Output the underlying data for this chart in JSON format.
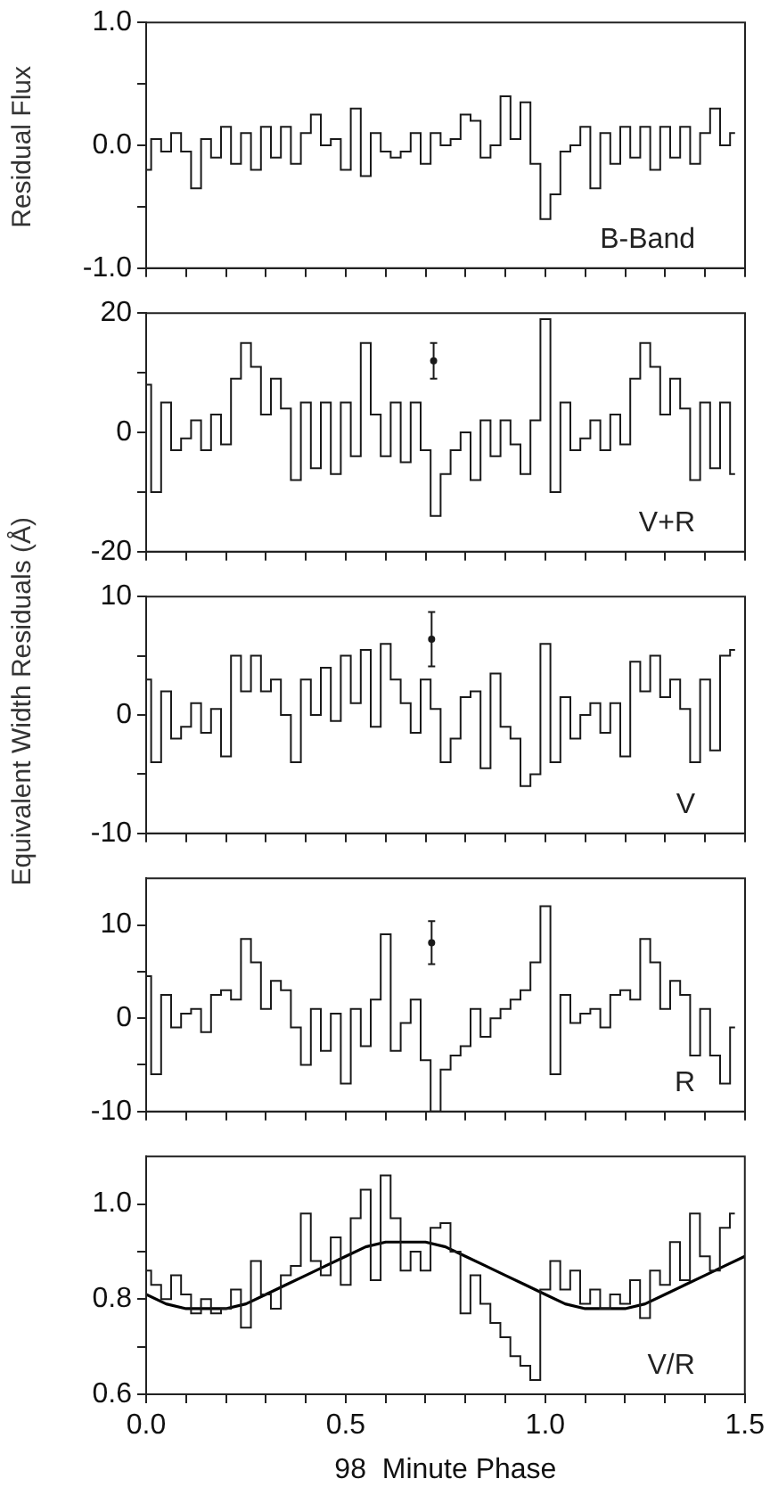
{
  "chart_data": [
    {
      "type": "step",
      "ylabel": "Residual Flux",
      "tick_labels": "y",
      "annotations": [
        "B-Band"
      ],
      "xlim": [
        0,
        1.5
      ],
      "xticks": [
        0,
        0.1,
        0.2,
        0.3,
        0.4,
        0.5,
        0.6,
        0.7,
        0.8,
        0.9,
        1,
        1.1,
        1.2,
        1.3,
        1.4,
        1.5
      ],
      "ylim": [
        -1,
        1
      ],
      "yticks": [
        {
          "value": -1,
          "label": "-1.0"
        },
        {
          "value": -0.5,
          "label": null
        },
        {
          "value": 0,
          "label": "0.0"
        },
        {
          "value": 0.5,
          "label": null
        },
        {
          "value": 1,
          "label": "1.0"
        }
      ],
      "x": [
        0,
        0.025,
        0.05,
        0.075,
        0.1,
        0.125,
        0.15,
        0.175,
        0.2,
        0.225,
        0.25,
        0.275,
        0.3,
        0.325,
        0.35,
        0.375,
        0.4,
        0.425,
        0.45,
        0.475,
        0.5,
        0.525,
        0.55,
        0.575,
        0.6,
        0.625,
        0.65,
        0.675,
        0.7,
        0.725,
        0.75,
        0.775,
        0.8,
        0.825,
        0.85,
        0.875,
        0.9,
        0.925,
        0.95,
        0.975,
        1,
        1.025,
        1.05,
        1.075,
        1.1,
        1.125,
        1.15,
        1.175,
        1.2,
        1.225,
        1.25,
        1.275,
        1.3,
        1.325,
        1.35,
        1.375,
        1.4,
        1.425,
        1.45,
        1.475
      ],
      "series": [
        {
          "color": "#1a1a1a",
          "values": [
            -0.2,
            0.05,
            -0.05,
            0.1,
            -0.05,
            -0.35,
            0.05,
            -0.1,
            0.15,
            -0.15,
            0.1,
            -0.2,
            0.15,
            -0.1,
            0.15,
            -0.15,
            0.1,
            0.25,
            0,
            0.05,
            -0.2,
            0.3,
            -0.25,
            0.1,
            -0.05,
            -0.1,
            -0.05,
            0.1,
            -0.15,
            0.1,
            0,
            0.05,
            0.25,
            0.2,
            -0.1,
            0,
            0.4,
            0.05,
            0.35,
            -0.15,
            -0.6,
            -0.4,
            -0.05,
            0,
            0.15,
            -0.35,
            0.1,
            -0.15,
            0.15,
            -0.1,
            0.15,
            -0.2,
            0.15,
            -0.1,
            0.15,
            -0.15,
            0.1,
            0.3,
            0,
            0.1
          ]
        }
      ]
    },
    {
      "type": "step",
      "tick_labels": "y",
      "annotations": [
        "V+R"
      ],
      "xlim": [
        0,
        1.5
      ],
      "xticks": [
        0,
        0.1,
        0.2,
        0.3,
        0.4,
        0.5,
        0.6,
        0.7,
        0.8,
        0.9,
        1,
        1.1,
        1.2,
        1.3,
        1.4,
        1.5
      ],
      "ylim": [
        -20,
        20
      ],
      "yticks": [
        -20,
        {
          "value": -10,
          "label": null
        },
        0,
        {
          "value": 10,
          "label": null
        },
        20
      ],
      "x": [
        0,
        0.025,
        0.05,
        0.075,
        0.1,
        0.125,
        0.15,
        0.175,
        0.2,
        0.225,
        0.25,
        0.275,
        0.3,
        0.325,
        0.35,
        0.375,
        0.4,
        0.425,
        0.45,
        0.475,
        0.5,
        0.525,
        0.55,
        0.575,
        0.6,
        0.625,
        0.65,
        0.675,
        0.7,
        0.725,
        0.75,
        0.775,
        0.8,
        0.825,
        0.85,
        0.875,
        0.9,
        0.925,
        0.95,
        0.975,
        1,
        1.025,
        1.05,
        1.075,
        1.1,
        1.125,
        1.15,
        1.175,
        1.2,
        1.225,
        1.25,
        1.275,
        1.3,
        1.325,
        1.35,
        1.375,
        1.4,
        1.425,
        1.45,
        1.475
      ],
      "series": [
        {
          "color": "#1a1a1a",
          "values": [
            8,
            -10,
            5,
            -3,
            -1,
            2,
            -3,
            3,
            -2,
            9,
            15,
            11,
            3,
            9,
            4,
            -8,
            5,
            -6,
            5,
            -7,
            5,
            -4,
            15,
            3,
            -4,
            5,
            -5,
            5,
            -3,
            -14,
            -7,
            -3,
            0,
            -8,
            2,
            -4,
            2,
            -2,
            -7,
            2,
            19,
            -10,
            5,
            -3,
            -1,
            2,
            -3,
            3,
            -2,
            9,
            15,
            11,
            3,
            9,
            4,
            -8,
            5,
            -6,
            5,
            -7
          ]
        },
        {
          "type": "scatter",
          "color": "#1a1a1a",
          "x": [
            0.72
          ],
          "values": [
            12
          ],
          "errors": [
            3
          ]
        }
      ]
    },
    {
      "type": "step",
      "ylabel": "Equivalent Width Residuals (Å)",
      "tick_labels": "y",
      "annotations": [
        "V"
      ],
      "xlim": [
        0,
        1.5
      ],
      "xticks": [
        0,
        0.1,
        0.2,
        0.3,
        0.4,
        0.5,
        0.6,
        0.7,
        0.8,
        0.9,
        1,
        1.1,
        1.2,
        1.3,
        1.4,
        1.5
      ],
      "ylim": [
        -10,
        10
      ],
      "yticks": [
        -10,
        {
          "value": -5,
          "label": null
        },
        0,
        {
          "value": 5,
          "label": null
        },
        10
      ],
      "x": [
        0,
        0.025,
        0.05,
        0.075,
        0.1,
        0.125,
        0.15,
        0.175,
        0.2,
        0.225,
        0.25,
        0.275,
        0.3,
        0.325,
        0.35,
        0.375,
        0.4,
        0.425,
        0.45,
        0.475,
        0.5,
        0.525,
        0.55,
        0.575,
        0.6,
        0.625,
        0.65,
        0.675,
        0.7,
        0.725,
        0.75,
        0.775,
        0.8,
        0.825,
        0.85,
        0.875,
        0.9,
        0.925,
        0.95,
        0.975,
        1,
        1.025,
        1.05,
        1.075,
        1.1,
        1.125,
        1.15,
        1.175,
        1.2,
        1.225,
        1.25,
        1.275,
        1.3,
        1.325,
        1.35,
        1.375,
        1.4,
        1.425,
        1.45,
        1.475
      ],
      "series": [
        {
          "color": "#1a1a1a",
          "values": [
            3,
            -4,
            2,
            -2,
            -1,
            1,
            -1.5,
            0.5,
            -3.5,
            5,
            2,
            5,
            2,
            3,
            0,
            -4,
            3,
            0,
            4,
            -0.5,
            5,
            1,
            5.5,
            -1,
            6,
            3,
            1,
            -1.5,
            3,
            0.5,
            -4,
            -2,
            1.5,
            2,
            -4.5,
            3.5,
            -1,
            -2,
            -6,
            -5,
            6,
            -4,
            1.5,
            -2,
            0,
            1,
            -1.5,
            1,
            -3.5,
            4.5,
            2,
            5,
            1.5,
            3,
            0.5,
            -4,
            3,
            -3,
            5,
            5.5
          ]
        },
        {
          "type": "scatter",
          "color": "#1a1a1a",
          "x": [
            0.715
          ],
          "values": [
            6.4
          ],
          "errors": [
            2.3
          ]
        }
      ]
    },
    {
      "type": "step",
      "tick_labels": "y",
      "annotations": [
        "R"
      ],
      "xlim": [
        0,
        1.5
      ],
      "xticks": [
        0,
        0.1,
        0.2,
        0.3,
        0.4,
        0.5,
        0.6,
        0.7,
        0.8,
        0.9,
        1,
        1.1,
        1.2,
        1.3,
        1.4,
        1.5
      ],
      "ylim": [
        -10,
        15
      ],
      "yticks": [
        -10,
        {
          "value": -5,
          "label": null
        },
        0,
        {
          "value": 5,
          "label": null
        },
        10
      ],
      "x": [
        0,
        0.025,
        0.05,
        0.075,
        0.1,
        0.125,
        0.15,
        0.175,
        0.2,
        0.225,
        0.25,
        0.275,
        0.3,
        0.325,
        0.35,
        0.375,
        0.4,
        0.425,
        0.45,
        0.475,
        0.5,
        0.525,
        0.55,
        0.575,
        0.6,
        0.625,
        0.65,
        0.675,
        0.7,
        0.725,
        0.75,
        0.775,
        0.8,
        0.825,
        0.85,
        0.875,
        0.9,
        0.925,
        0.95,
        0.975,
        1,
        1.025,
        1.05,
        1.075,
        1.1,
        1.125,
        1.15,
        1.175,
        1.2,
        1.225,
        1.25,
        1.275,
        1.3,
        1.325,
        1.35,
        1.375,
        1.4,
        1.425,
        1.45,
        1.475
      ],
      "series": [
        {
          "color": "#1a1a1a",
          "values": [
            4.5,
            -6,
            2.5,
            -1,
            0.5,
            1,
            -1.5,
            2.5,
            3,
            2,
            8.5,
            6,
            1,
            4,
            3,
            -1,
            -5,
            1,
            -3.5,
            0.5,
            -7,
            1,
            -3,
            2,
            9,
            -3.5,
            -0.5,
            2,
            -4.5,
            -10,
            -5.5,
            -4,
            -3,
            1,
            -2,
            0,
            1,
            2,
            3,
            6,
            12,
            -6,
            2.5,
            -0.5,
            0.5,
            1,
            -1,
            2.5,
            3,
            2,
            8.5,
            6,
            1,
            4,
            2.5,
            -4,
            1,
            -4,
            -7,
            -1
          ]
        },
        {
          "type": "scatter",
          "color": "#1a1a1a",
          "x": [
            0.715
          ],
          "values": [
            8.1
          ],
          "errors": [
            2.3
          ]
        }
      ]
    },
    {
      "type": "step",
      "xlabel": "98  Minute Phase",
      "annotations": [
        "V/R"
      ],
      "xlim": [
        0,
        1.5
      ],
      "xticks": [
        {
          "value": 0,
          "label": "0.0"
        },
        {
          "value": 0.1,
          "label": null
        },
        {
          "value": 0.2,
          "label": null
        },
        {
          "value": 0.3,
          "label": null
        },
        {
          "value": 0.4,
          "label": null
        },
        {
          "value": 0.5,
          "label": "0.5"
        },
        {
          "value": 0.6,
          "label": null
        },
        {
          "value": 0.7,
          "label": null
        },
        {
          "value": 0.8,
          "label": null
        },
        {
          "value": 0.9,
          "label": null
        },
        {
          "value": 1,
          "label": "1.0"
        },
        {
          "value": 1.1,
          "label": null
        },
        {
          "value": 1.2,
          "label": null
        },
        {
          "value": 1.3,
          "label": null
        },
        {
          "value": 1.4,
          "label": null
        },
        {
          "value": 1.5,
          "label": "1.5"
        }
      ],
      "ylim": [
        0.6,
        1.1
      ],
      "yticks": [
        {
          "value": 0.6,
          "label": "0.6"
        },
        {
          "value": 0.7,
          "label": null
        },
        {
          "value": 0.8,
          "label": "0.8"
        },
        {
          "value": 0.9,
          "label": null
        },
        {
          "value": 1,
          "label": "1.0"
        }
      ],
      "x": [
        0,
        0.025,
        0.05,
        0.075,
        0.1,
        0.125,
        0.15,
        0.175,
        0.2,
        0.225,
        0.25,
        0.275,
        0.3,
        0.325,
        0.35,
        0.375,
        0.4,
        0.425,
        0.45,
        0.475,
        0.5,
        0.525,
        0.55,
        0.575,
        0.6,
        0.625,
        0.65,
        0.675,
        0.7,
        0.725,
        0.75,
        0.775,
        0.8,
        0.825,
        0.85,
        0.875,
        0.9,
        0.925,
        0.95,
        0.975,
        1,
        1.025,
        1.05,
        1.075,
        1.1,
        1.125,
        1.15,
        1.175,
        1.2,
        1.225,
        1.25,
        1.275,
        1.3,
        1.325,
        1.35,
        1.375,
        1.4,
        1.425,
        1.45,
        1.475
      ],
      "series": [
        {
          "color": "#1a1a1a",
          "values": [
            0.86,
            0.83,
            0.8,
            0.85,
            0.81,
            0.77,
            0.8,
            0.77,
            0.78,
            0.82,
            0.74,
            0.88,
            0.81,
            0.78,
            0.85,
            0.87,
            0.98,
            0.88,
            0.85,
            0.93,
            0.83,
            0.97,
            1.03,
            0.84,
            1.06,
            0.97,
            0.86,
            0.9,
            0.86,
            0.95,
            0.96,
            0.9,
            0.77,
            0.85,
            0.79,
            0.75,
            0.72,
            0.68,
            0.66,
            0.63,
            0.82,
            0.88,
            0.82,
            0.86,
            0.79,
            0.82,
            0.78,
            0.81,
            0.79,
            0.84,
            0.76,
            0.86,
            0.83,
            0.92,
            0.84,
            0.98,
            0.89,
            0.86,
            0.95,
            0.98
          ]
        },
        {
          "type": "line",
          "color": "#000000",
          "x": [
            0,
            0.05,
            0.1,
            0.15,
            0.2,
            0.25,
            0.3,
            0.35,
            0.4,
            0.45,
            0.5,
            0.55,
            0.6,
            0.65,
            0.7,
            0.75,
            0.8,
            0.85,
            0.9,
            0.95,
            1,
            1.05,
            1.1,
            1.15,
            1.2,
            1.25,
            1.3,
            1.35,
            1.4,
            1.45,
            1.5
          ],
          "values": [
            0.81,
            0.79,
            0.78,
            0.78,
            0.78,
            0.79,
            0.81,
            0.83,
            0.85,
            0.87,
            0.89,
            0.91,
            0.92,
            0.92,
            0.92,
            0.91,
            0.89,
            0.87,
            0.85,
            0.83,
            0.81,
            0.79,
            0.78,
            0.78,
            0.78,
            0.79,
            0.81,
            0.83,
            0.85,
            0.87,
            0.89
          ]
        }
      ]
    }
  ]
}
